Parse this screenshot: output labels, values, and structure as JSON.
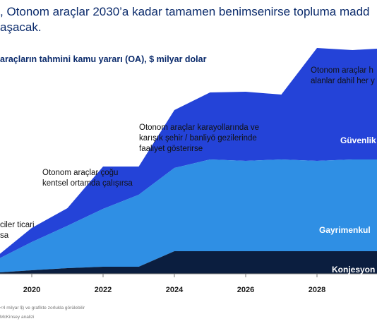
{
  "headline": [
    ", Otonom araçlar 2030’a kadar tamamen benimsenirse topluma madd",
    "aşacak."
  ],
  "subtitle": "araçların tahmini kamu yararı (OA), $ milyar dolar",
  "annotations": [
    [
      "ciler ticari",
      "sa"
    ],
    [
      "Otonom araçlar çoğu",
      "kentsel ortamda çalışırsa"
    ],
    [
      "Otonom araçlar karayollarında ve",
      "karışık şehir / banliyö gezilerinde",
      "faaliyet gösterirse"
    ],
    [
      "Otonom araçlar h",
      "alanlar dahil her y"
    ]
  ],
  "footnotes": [
    "<4 milyar $) ve grafikte zorlukla görülebilir",
    "McKinsey analizi"
  ],
  "colors": {
    "title": "#0a2a6b",
    "guvenlik": "#2443d8",
    "gayrimenkul": "#2f8fe4",
    "konjesyon": "#0b1e3f",
    "axis": "#7a7a7a"
  },
  "chart_data": {
    "type": "area",
    "stacked": true,
    "title": "araçların tahmini kamu yararı (OA), $ milyar dolar",
    "xlabel": "",
    "ylabel": "",
    "x": [
      2019.1,
      2020,
      2021,
      2022,
      2023,
      2024,
      2025,
      2026,
      2027,
      2028,
      2029,
      2030
    ],
    "x_ticks": [
      2020,
      2022,
      2024,
      2026,
      2028
    ],
    "series": [
      {
        "name": "Konjesyon",
        "values": [
          2,
          5,
          8,
          10,
          10,
          32,
          32,
          32,
          32,
          32,
          32,
          32
        ]
      },
      {
        "name": "Gayrimenkul",
        "values": [
          20,
          40,
          60,
          82,
          102,
          118,
          130,
          128,
          130,
          128,
          130,
          130
        ]
      },
      {
        "name": "Güvenlik",
        "values": [
          6,
          20,
          25,
          60,
          40,
          82,
          95,
          98,
          92,
          160,
          155,
          158
        ]
      }
    ]
  }
}
